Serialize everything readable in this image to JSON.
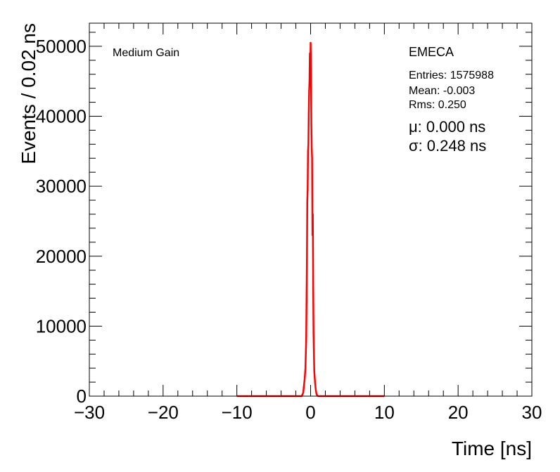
{
  "chart_data": {
    "type": "line",
    "xlabel": "Time [ns]",
    "ylabel": "Events / 0.02 ns",
    "xlim": [
      -30,
      30
    ],
    "ylim": [
      0,
      53300
    ],
    "x_ticks": [
      -30,
      -20,
      -10,
      0,
      10,
      20,
      30
    ],
    "y_ticks": [
      0,
      10000,
      20000,
      30000,
      40000,
      50000
    ],
    "x_tick_labels": [
      "−30",
      "−20",
      "−10",
      "0",
      "10",
      "20",
      "30"
    ],
    "y_tick_labels": [
      "0",
      "10000",
      "20000",
      "30000",
      "40000",
      "50000"
    ],
    "grid": false,
    "series": [
      {
        "color": "#ff0000",
        "x": [
          -10,
          -1.2,
          -1.0,
          -0.9,
          -0.8,
          -0.7,
          -0.6,
          -0.5,
          -0.45,
          -0.4,
          -0.35,
          -0.3,
          -0.25,
          -0.2,
          -0.15,
          -0.1,
          -0.05,
          0,
          0.05,
          0.1,
          0.15,
          0.2,
          0.25,
          0.3,
          0.35,
          0.4,
          0.45,
          0.5,
          0.6,
          0.7,
          0.8,
          0.9,
          1.0,
          1.2,
          10
        ],
        "y": [
          0,
          0,
          500,
          1500,
          2500,
          4000,
          8000,
          19000,
          28000,
          29500,
          35000,
          36000,
          40500,
          43500,
          45000,
          49000,
          45500,
          50500,
          47000,
          39000,
          35500,
          34000,
          23000,
          26000,
          15500,
          9000,
          6000,
          3500,
          2000,
          900,
          300,
          100,
          0,
          0,
          0
        ]
      }
    ],
    "annotations": {
      "gain_label": "Medium Gain",
      "partition": "EMECA",
      "entries": "Entries: 1575988",
      "mean": "Mean: -0.003",
      "rms": "Rms: 0.250",
      "mu": "μ: 0.000 ns",
      "sigma": "σ: 0.248 ns"
    }
  }
}
